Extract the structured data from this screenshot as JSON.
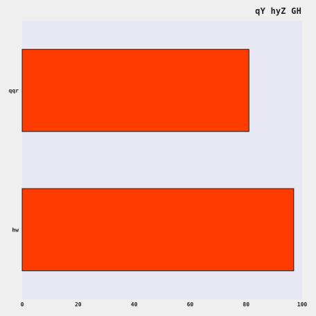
{
  "chart_data": {
    "type": "bar",
    "orientation": "horizontal",
    "title": "qY hyZ GH",
    "xlabel": "",
    "ylabel": "",
    "categories": [
      "hw",
      "qqr"
    ],
    "values": [
      97,
      81
    ],
    "xlim": [
      0,
      100
    ],
    "xticks": [
      0,
      20,
      40,
      60,
      80,
      100
    ],
    "grid": false,
    "colors": {
      "bar": "#ff3b00",
      "bar_edge": "#1a1a1a",
      "plot_background": "#e8e8f2",
      "figure_background": "#efefef"
    }
  }
}
